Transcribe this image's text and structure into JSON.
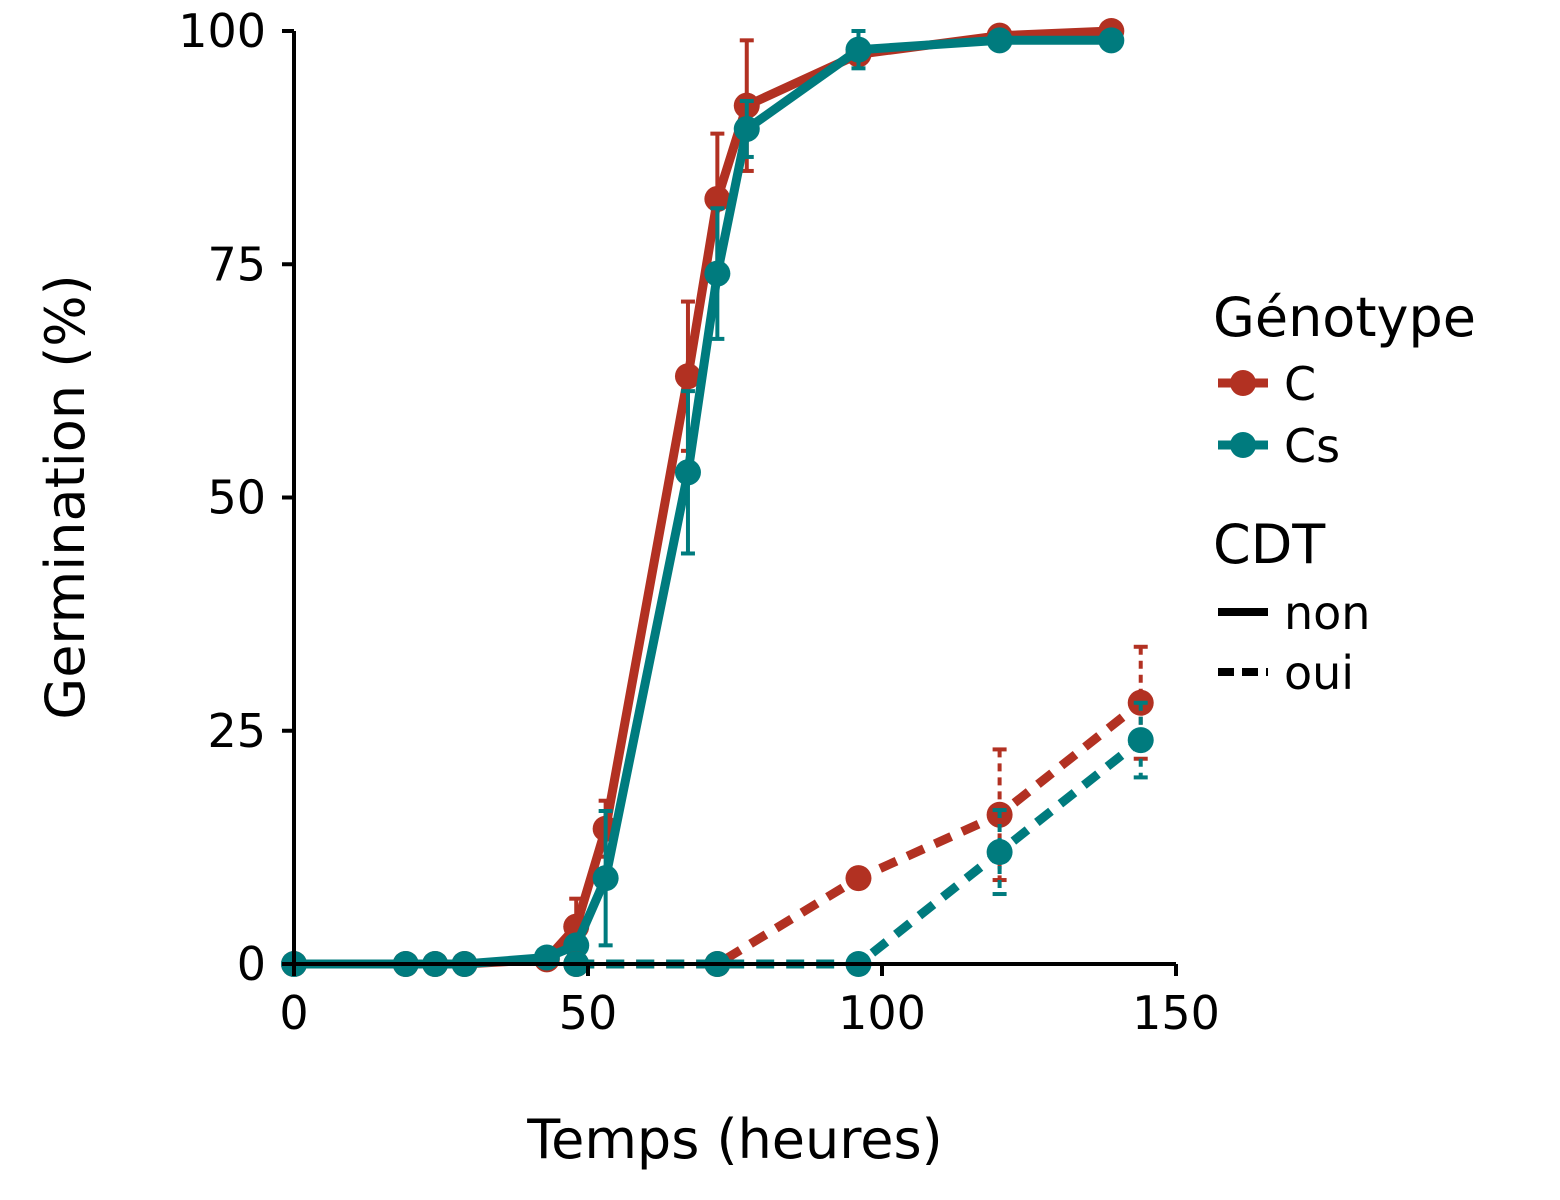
{
  "chart_data": {
    "type": "line",
    "title": "",
    "xlabel": "Temps (heures)",
    "ylabel": "Germination (%)",
    "xlim": [
      0,
      150
    ],
    "ylim": [
      0,
      100
    ],
    "x_ticks": [
      0,
      50,
      100,
      150
    ],
    "y_ticks": [
      0,
      25,
      50,
      75,
      100
    ],
    "grid": false,
    "legend_position": "right",
    "legends": {
      "genotype": {
        "title": "Génotype",
        "entries": [
          {
            "label": "C",
            "color": "#B23122"
          },
          {
            "label": "Cs",
            "color": "#007B7E"
          }
        ]
      },
      "cdt": {
        "title": "CDT",
        "entries": [
          {
            "label": "non",
            "linestyle": "solid"
          },
          {
            "label": "oui",
            "linestyle": "dashed"
          }
        ]
      }
    },
    "series": [
      {
        "genotype": "C",
        "cdt": "non",
        "color": "#B23122",
        "linestyle": "solid",
        "x": [
          0,
          19,
          24,
          29,
          43,
          48,
          53,
          67,
          72,
          77,
          96,
          120,
          139
        ],
        "y": [
          0,
          0,
          0,
          0,
          0.5,
          4,
          14.5,
          63,
          82,
          92,
          97.5,
          99.5,
          100
        ],
        "err": [
          0,
          0,
          0,
          0,
          0,
          3,
          3,
          8,
          7,
          7,
          1,
          0.5,
          0
        ]
      },
      {
        "genotype": "Cs",
        "cdt": "non",
        "color": "#007B7E",
        "linestyle": "solid",
        "x": [
          0,
          19,
          24,
          29,
          43,
          48,
          53,
          67,
          72,
          77,
          96,
          120,
          139
        ],
        "y": [
          0,
          0,
          0,
          0,
          0.7,
          2,
          9.2,
          52.7,
          74,
          89.5,
          98,
          99,
          99
        ],
        "err": [
          0,
          0,
          0,
          0,
          0,
          1,
          7.2,
          8.7,
          7,
          3,
          2,
          0.5,
          0
        ]
      },
      {
        "genotype": "C",
        "cdt": "oui",
        "color": "#B23122",
        "linestyle": "dashed",
        "x": [
          48,
          72,
          96,
          120,
          144
        ],
        "y": [
          0,
          0,
          9.2,
          16,
          28
        ],
        "err": [
          0,
          0,
          0.5,
          7,
          6
        ]
      },
      {
        "genotype": "Cs",
        "cdt": "oui",
        "color": "#007B7E",
        "linestyle": "dashed",
        "x": [
          48,
          72,
          96,
          120,
          144
        ],
        "y": [
          0,
          0,
          0,
          12,
          24
        ],
        "err": [
          0,
          0,
          0,
          4.5,
          4
        ]
      }
    ]
  }
}
